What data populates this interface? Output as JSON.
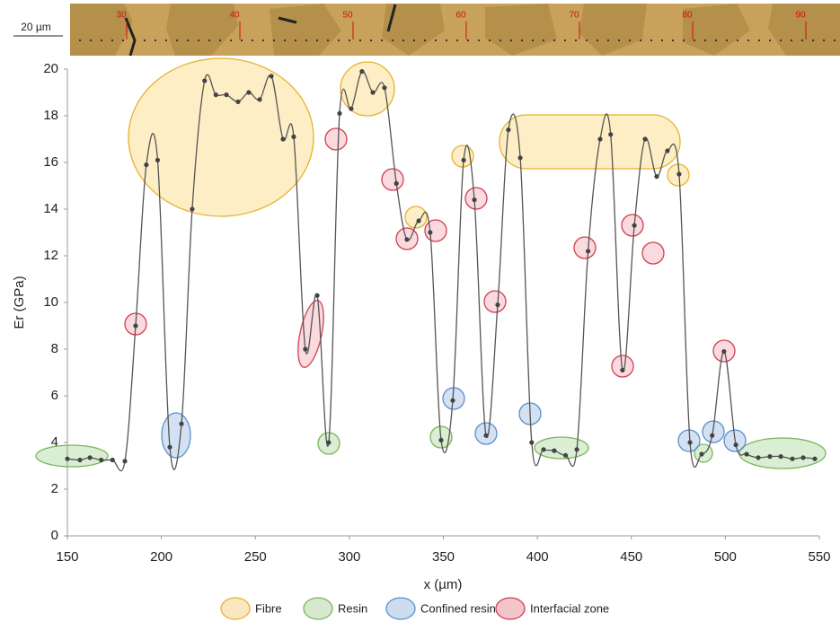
{
  "chart_data": {
    "type": "line",
    "x_label": "x (µm)",
    "y_label": "Er (GPa)",
    "scale_bar": "20 µm",
    "image_marks": [
      30,
      40,
      50,
      60,
      70,
      80,
      90
    ],
    "xlim": [
      150,
      550
    ],
    "xticks": [
      150,
      200,
      250,
      300,
      350,
      400,
      450,
      500,
      550
    ],
    "ylim": [
      0,
      20
    ],
    "yticks": [
      0,
      2,
      4,
      6,
      8,
      10,
      12,
      14,
      16,
      18,
      20
    ],
    "grid": false,
    "series": [
      {
        "color": "#555555",
        "x": [
          150,
          156.7,
          162,
          168,
          174,
          180.6,
          186.3,
          192,
          198,
          204.5,
          210.7,
          216.4,
          223,
          229,
          234.6,
          240.8,
          246.5,
          252.3,
          258.5,
          264.7,
          270.4,
          276.6,
          282.9,
          289,
          294.8,
          301,
          306.7,
          312.5,
          318.7,
          325,
          330.6,
          336.9,
          343,
          348.8,
          355,
          360.8,
          366.5,
          372.7,
          378.9,
          384.6,
          390.9,
          397,
          403.3,
          409,
          415,
          421,
          427,
          433.4,
          439,
          445.3,
          451.6,
          457.3,
          463.5,
          469.2,
          475.4,
          481.2,
          487.4,
          493,
          499.3,
          505.6,
          511.3,
          517.5,
          523.7,
          529.5,
          535.7,
          541.4,
          547.6
        ],
        "values": [
          3.3,
          3.25,
          3.35,
          3.25,
          3.25,
          3.2,
          9.0,
          15.9,
          16.1,
          3.8,
          4.8,
          14.0,
          19.5,
          18.9,
          18.9,
          18.6,
          19.0,
          18.7,
          19.7,
          17.0,
          17.1,
          8.0,
          10.3,
          4.0,
          18.1,
          18.3,
          19.9,
          19.0,
          19.2,
          15.1,
          12.7,
          13.5,
          13.0,
          4.1,
          5.8,
          16.1,
          14.4,
          4.3,
          9.9,
          17.4,
          16.2,
          4.0,
          3.7,
          3.65,
          3.45,
          3.7,
          12.2,
          17.0,
          17.2,
          7.1,
          13.3,
          17.0,
          15.4,
          16.5,
          15.5,
          4.0,
          3.5,
          4.3,
          7.9,
          3.9,
          3.5,
          3.35,
          3.4,
          3.4,
          3.3,
          3.35,
          3.3
        ]
      }
    ],
    "legend": [
      {
        "name": "Fibre",
        "color": "#e8b130"
      },
      {
        "name": "Resin",
        "color": "#7cb45c"
      },
      {
        "name": "Confined resin",
        "color": "#5b8fcb"
      },
      {
        "name": "Interfacial zone",
        "color": "#d04050"
      }
    ]
  }
}
